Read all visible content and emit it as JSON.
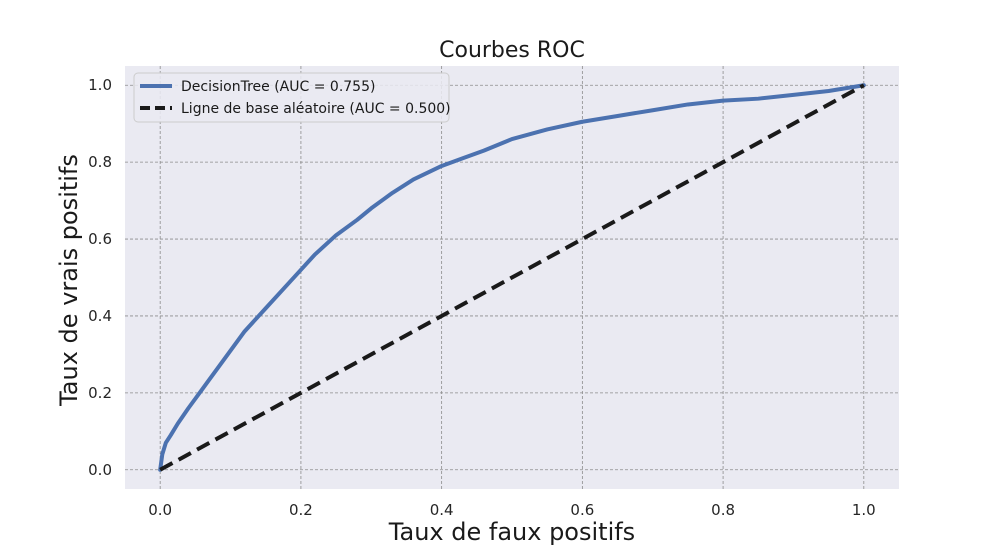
{
  "chart_data": {
    "type": "line",
    "title": "Courbes ROC",
    "xlabel": "Taux de faux positifs",
    "ylabel": "Taux de vrais positifs",
    "xlim": [
      -0.05,
      1.05
    ],
    "ylim": [
      -0.05,
      1.05
    ],
    "xticks": [
      0.0,
      0.2,
      0.4,
      0.6,
      0.8,
      1.0
    ],
    "yticks": [
      0.0,
      0.2,
      0.4,
      0.6,
      0.8,
      1.0
    ],
    "xtick_labels": [
      "0.0",
      "0.2",
      "0.4",
      "0.6",
      "0.8",
      "1.0"
    ],
    "ytick_labels": [
      "0.0",
      "0.2",
      "0.4",
      "0.6",
      "0.8",
      "1.0"
    ],
    "grid": true,
    "legend_position": "top-left",
    "background_color": "#eaeaf2",
    "series": [
      {
        "name": "DecisionTree (AUC = 0.755)",
        "color": "#4c72b0",
        "style": "solid",
        "x": [
          0.0,
          0.003,
          0.008,
          0.015,
          0.025,
          0.04,
          0.06,
          0.08,
          0.1,
          0.12,
          0.15,
          0.18,
          0.2,
          0.22,
          0.25,
          0.28,
          0.3,
          0.33,
          0.36,
          0.4,
          0.43,
          0.46,
          0.5,
          0.55,
          0.6,
          0.65,
          0.7,
          0.75,
          0.8,
          0.85,
          0.9,
          0.95,
          1.0
        ],
        "y": [
          0.0,
          0.04,
          0.07,
          0.09,
          0.12,
          0.16,
          0.21,
          0.26,
          0.31,
          0.36,
          0.42,
          0.48,
          0.52,
          0.56,
          0.61,
          0.65,
          0.68,
          0.72,
          0.755,
          0.79,
          0.81,
          0.83,
          0.86,
          0.885,
          0.905,
          0.92,
          0.935,
          0.95,
          0.96,
          0.965,
          0.975,
          0.985,
          1.0
        ]
      },
      {
        "name": "Ligne de base aléatoire (AUC = 0.500)",
        "color": "#1a1a1a",
        "style": "dashed",
        "x": [
          0.0,
          1.0
        ],
        "y": [
          0.0,
          1.0
        ]
      }
    ]
  }
}
